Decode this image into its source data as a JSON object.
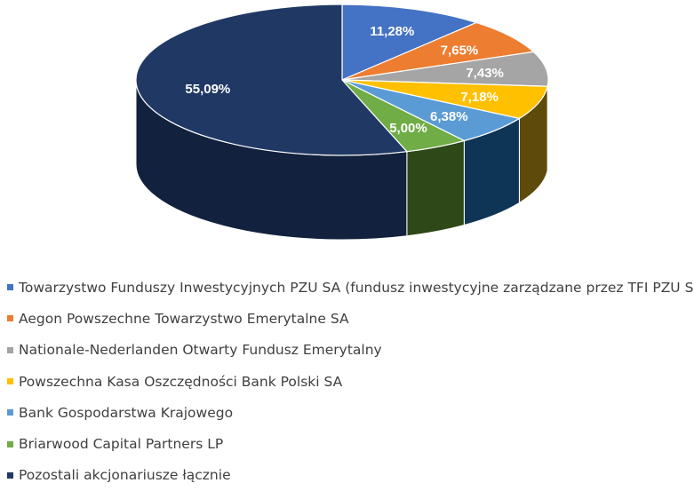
{
  "chart_data": {
    "type": "pie",
    "style": "3d",
    "title": "",
    "legend_position": "bottom",
    "slices": [
      {
        "label": "Towarzystwo Funduszy Inwestycyjnych PZU SA  (fundusz inwestycyjne zarządzane przez TFI PZU SA)",
        "value": 11.28,
        "value_label": "11,28%",
        "color": "#4472C4",
        "side_color": "#2A4A85"
      },
      {
        "label": "Aegon Powszechne Towarzystwo Emerytalne SA",
        "value": 7.65,
        "value_label": "7,65%",
        "color": "#ED7D31",
        "side_color": "#9A4F1C"
      },
      {
        "label": "Nationale-Nederlanden Otwarty Fundusz Emerytalny",
        "value": 7.43,
        "value_label": "7,43%",
        "color": "#A5A5A5",
        "side_color": "#6A6A6A"
      },
      {
        "label": "Powszechna Kasa Oszczędności Bank Polski SA",
        "value": 7.18,
        "value_label": "7,18%",
        "color": "#FFC000",
        "side_color": "#5E4A0B"
      },
      {
        "label": "Bank Gospodarstwa Krajowego",
        "value": 6.38,
        "value_label": "6,38%",
        "color": "#5B9BD5",
        "side_color": "#0F3556"
      },
      {
        "label": "Briarwood Capital Partners LP",
        "value": 5.0,
        "value_label": "5,00%",
        "color": "#70AD47",
        "side_color": "#2E4818"
      },
      {
        "label": "Pozostali akcjonariusze łącznie",
        "value": 55.09,
        "value_label": "55,09%",
        "color": "#203864",
        "side_color": "#12213D"
      }
    ]
  }
}
